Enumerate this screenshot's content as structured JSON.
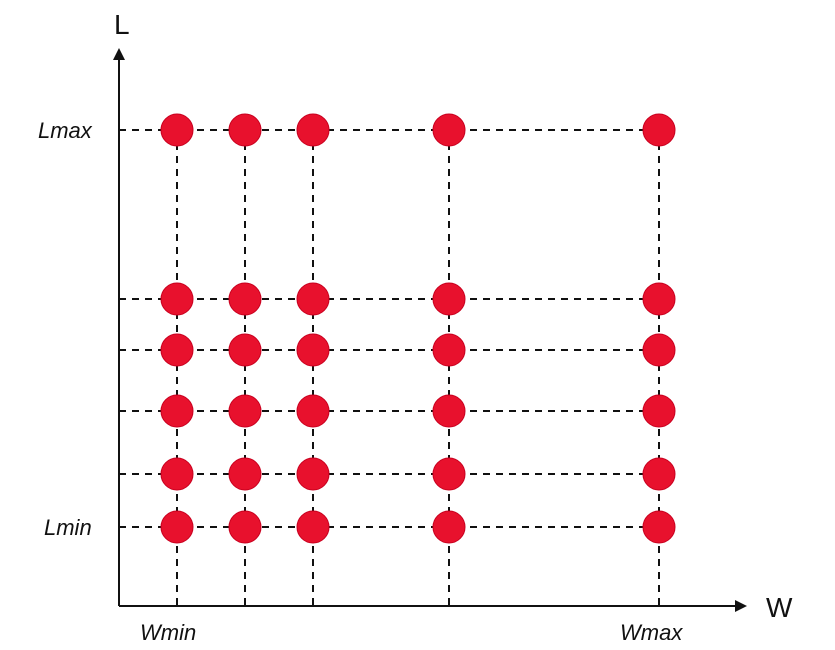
{
  "diagram": {
    "y_axis_title": "L",
    "x_axis_title": "W",
    "y_labels": {
      "max": "Lmax",
      "min": "Lmin"
    },
    "x_labels": {
      "min": "Wmin",
      "max": "Wmax"
    },
    "colors": {
      "node": "#e8112d",
      "line": "#111111"
    },
    "columns": 5,
    "rows": 6,
    "row_levels": [
      "Lmax",
      "",
      "",
      "",
      "",
      "Lmin"
    ],
    "column_levels": [
      "Wmin",
      "",
      "",
      "",
      "Wmax"
    ]
  }
}
